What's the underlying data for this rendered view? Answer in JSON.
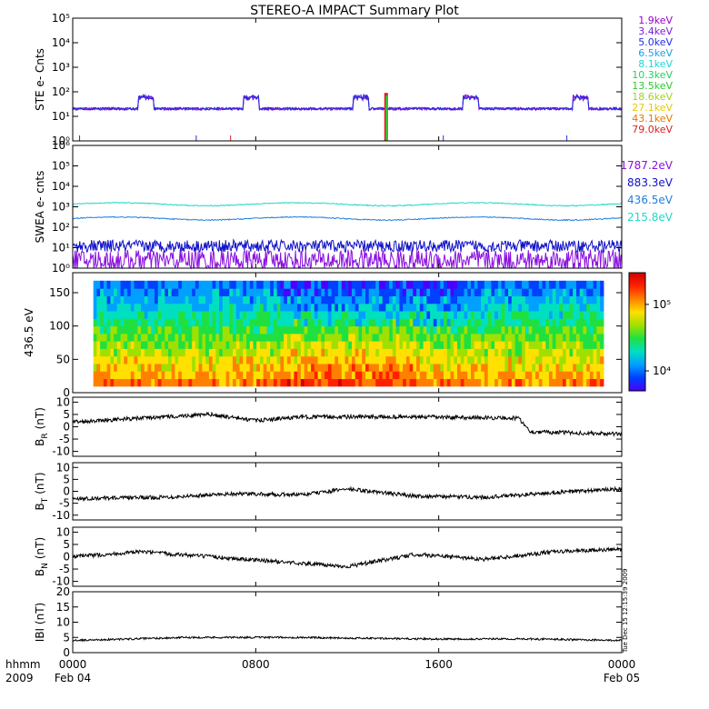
{
  "colors": {
    "legend_ste": [
      "#9900cc",
      "#7a1ad9",
      "#1f2fe0",
      "#1a9fdf",
      "#22d4d4",
      "#25d060",
      "#30c830",
      "#a7d020",
      "#e8c800",
      "#e07800",
      "#d82020"
    ],
    "legend_swea": [
      "#8a10e0",
      "#1010c8",
      "#1f7fe0",
      "#22d8c8"
    ],
    "colorbar": [
      "#4b00ff",
      "#0040ff",
      "#00a0ff",
      "#00e0c0",
      "#20e040",
      "#a0e000",
      "#ffe000",
      "#ff8000",
      "#ff2000",
      "#d00000"
    ]
  },
  "chart_data": [
    {
      "type": "line",
      "title": "STEREO-A IMPACT Summary Plot",
      "ylabel": "STE e- Cnts",
      "scale": "log",
      "ylim": [
        1,
        100000
      ],
      "ytick_labels": [
        "10⁰",
        "10¹",
        "10²",
        "10³",
        "10⁴",
        "10⁵"
      ],
      "legend_placement": "right",
      "series": [
        {
          "name": "1.9keV",
          "baseline": 20
        },
        {
          "name": "3.4keV",
          "baseline": 20
        },
        {
          "name": "5.0keV",
          "baseline": 20
        },
        {
          "name": "6.5keV",
          "baseline": 20
        },
        {
          "name": "8.1keV",
          "baseline": 20
        },
        {
          "name": "10.3keV",
          "baseline": 20
        },
        {
          "name": "13.5keV",
          "baseline": 20
        },
        {
          "name": "18.6keV",
          "baseline": 20
        },
        {
          "name": "27.1keV",
          "baseline": 20
        },
        {
          "name": "43.1keV",
          "baseline": 20
        },
        {
          "name": "79.0keV",
          "baseline": 20
        }
      ],
      "events_hours": [
        3.2,
        7.8,
        12.6,
        17.4,
        22.2
      ],
      "spike_hour": 13.7
    },
    {
      "type": "line",
      "ylabel": "SWEA e- cnts",
      "scale": "log",
      "ylim": [
        1,
        1000000
      ],
      "ytick_labels": [
        "10⁰",
        "10¹",
        "10²",
        "10³",
        "10⁴",
        "10⁵",
        "10⁶"
      ],
      "legend_placement": "right",
      "series": [
        {
          "name": "1787.2eV",
          "level": 3
        },
        {
          "name": "883.3eV",
          "level": 12
        },
        {
          "name": "436.5eV",
          "level": 300
        },
        {
          "name": "215.8eV",
          "level": 1500
        }
      ]
    },
    {
      "type": "heatmap",
      "ylabel": "436.5 eV",
      "ylim": [
        0,
        180
      ],
      "yticks": [
        0,
        50,
        100,
        150
      ],
      "colorbar_ticks": [
        "10⁴",
        "10⁵"
      ],
      "colorbar_range": [
        5000,
        300000
      ]
    },
    {
      "type": "line",
      "ylabel_main": "B",
      "ylabel_sub": "R",
      "ylabel_unit": "(nT)",
      "ylim": [
        -12,
        12
      ],
      "yticks": [
        -10,
        -5,
        0,
        5,
        10
      ],
      "segments": [
        [
          0,
          2
        ],
        [
          6,
          5
        ],
        [
          8,
          2.5
        ],
        [
          10,
          4
        ],
        [
          15,
          4
        ],
        [
          19.5,
          3.5
        ],
        [
          20,
          -2
        ],
        [
          24,
          -3
        ]
      ]
    },
    {
      "type": "line",
      "ylabel_main": "B",
      "ylabel_sub": "T",
      "ylabel_unit": "(nT)",
      "ylim": [
        -12,
        12
      ],
      "yticks": [
        -10,
        -5,
        0,
        5,
        10
      ],
      "segments": [
        [
          0,
          -3
        ],
        [
          4,
          -2.5
        ],
        [
          7,
          -1
        ],
        [
          10,
          -1.5
        ],
        [
          12,
          1
        ],
        [
          15,
          -2
        ],
        [
          18,
          -2.5
        ],
        [
          22,
          0
        ],
        [
          24,
          1
        ]
      ]
    },
    {
      "type": "line",
      "ylabel_main": "B",
      "ylabel_sub": "N",
      "ylabel_unit": "(nT)",
      "ylim": [
        -12,
        12
      ],
      "yticks": [
        -10,
        -5,
        0,
        5,
        10
      ],
      "segments": [
        [
          0,
          0
        ],
        [
          3,
          2
        ],
        [
          6,
          0
        ],
        [
          9,
          -2
        ],
        [
          12,
          -4
        ],
        [
          15,
          1
        ],
        [
          18,
          -1
        ],
        [
          21,
          2
        ],
        [
          24,
          3
        ]
      ]
    },
    {
      "type": "line",
      "ylabel": "IBI (nT)",
      "ylim": [
        0,
        20
      ],
      "yticks": [
        0,
        5,
        10,
        15,
        20
      ],
      "segments": [
        [
          0,
          4
        ],
        [
          5,
          5
        ],
        [
          10,
          5
        ],
        [
          15,
          4.5
        ],
        [
          20,
          4.5
        ],
        [
          24,
          4
        ]
      ]
    }
  ],
  "x_axis": {
    "range_hours": [
      0,
      24
    ],
    "ticks": [
      {
        "hour": 0,
        "label": "0000",
        "date": "Feb 04"
      },
      {
        "hour": 8,
        "label": "0800",
        "date": ""
      },
      {
        "hour": 16,
        "label": "1600",
        "date": ""
      },
      {
        "hour": 24,
        "label": "0000",
        "date": "Feb 05"
      }
    ],
    "row_label_top": "hhmm",
    "row_label_bottom": "2009"
  },
  "timestamp": "Tue Dec 15 12:15:39 2009"
}
